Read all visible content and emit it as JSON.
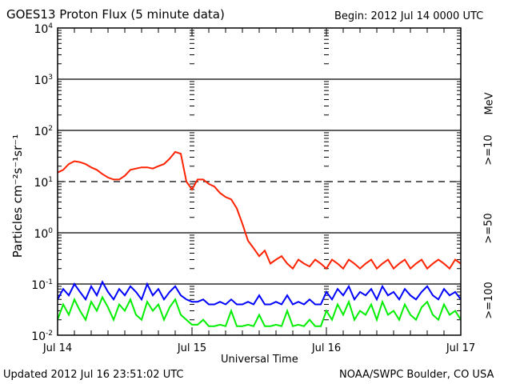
{
  "chart_data": {
    "type": "line",
    "title": "GOES13 Proton Flux (5 minute data)",
    "begin_label": "Begin: 2012 Jul 14 0000 UTC",
    "xlabel": "Universal Time",
    "ylabel": "Particles cm⁻²s⁻¹sr⁻¹",
    "yscale": "log",
    "ylim": [
      0.01,
      10000
    ],
    "xlim_hours": [
      0,
      72
    ],
    "x_tick_labels": [
      {
        "hour": 0,
        "label": "Jul 14"
      },
      {
        "hour": 24,
        "label": "Jul 15"
      },
      {
        "hour": 48,
        "label": "Jul 16"
      },
      {
        "hour": 72,
        "label": "Jul 17"
      }
    ],
    "y_tick_labels": [
      {
        "exp": 4,
        "base": "10",
        "sup": "4"
      },
      {
        "exp": 3,
        "base": "10",
        "sup": "3"
      },
      {
        "exp": 2,
        "base": "10",
        "sup": "2"
      },
      {
        "exp": 1,
        "base": "10",
        "sup": "1"
      },
      {
        "exp": 0,
        "base": "10",
        "sup": "0"
      },
      {
        "exp": -1,
        "base": "10",
        "sup": "-1"
      },
      {
        "exp": -2,
        "base": "10",
        "sup": "-2"
      }
    ],
    "unit_label": "MeV",
    "x_hours_step": 1,
    "series": [
      {
        "name": ">=10",
        "color": "#ff2200",
        "values": [
          15,
          17,
          22,
          25,
          24,
          22,
          19,
          17,
          14,
          12,
          11,
          11,
          13,
          17,
          18,
          19,
          19,
          18,
          20,
          22,
          28,
          38,
          35,
          10,
          7,
          11,
          11,
          9,
          8,
          6,
          5,
          4.5,
          3,
          1.5,
          0.7,
          0.5,
          0.35,
          0.45,
          0.25,
          0.3,
          0.35,
          0.25,
          0.2,
          0.3,
          0.25,
          0.22,
          0.3,
          0.25,
          0.2,
          0.3,
          0.25,
          0.2,
          0.3,
          0.25,
          0.2,
          0.25,
          0.3,
          0.2,
          0.25,
          0.3,
          0.2,
          0.25,
          0.3,
          0.2,
          0.25,
          0.3,
          0.2,
          0.25,
          0.3,
          0.25,
          0.2,
          0.3,
          0.25
        ]
      },
      {
        "name": ">=50",
        "color": "#0000ff",
        "values": [
          0.05,
          0.08,
          0.06,
          0.1,
          0.07,
          0.05,
          0.09,
          0.06,
          0.11,
          0.07,
          0.05,
          0.08,
          0.06,
          0.09,
          0.07,
          0.05,
          0.1,
          0.06,
          0.08,
          0.05,
          0.07,
          0.09,
          0.06,
          0.05,
          0.045,
          0.045,
          0.05,
          0.04,
          0.04,
          0.045,
          0.04,
          0.05,
          0.04,
          0.04,
          0.045,
          0.04,
          0.06,
          0.04,
          0.04,
          0.045,
          0.04,
          0.06,
          0.04,
          0.045,
          0.04,
          0.05,
          0.04,
          0.04,
          0.07,
          0.05,
          0.08,
          0.06,
          0.09,
          0.05,
          0.07,
          0.06,
          0.08,
          0.05,
          0.09,
          0.06,
          0.07,
          0.05,
          0.08,
          0.06,
          0.05,
          0.07,
          0.09,
          0.06,
          0.05,
          0.08,
          0.06,
          0.07,
          0.05
        ]
      },
      {
        "name": ">=100",
        "color": "#00ee00",
        "values": [
          0.02,
          0.04,
          0.025,
          0.05,
          0.03,
          0.02,
          0.045,
          0.03,
          0.055,
          0.035,
          0.02,
          0.04,
          0.03,
          0.05,
          0.025,
          0.02,
          0.045,
          0.03,
          0.04,
          0.02,
          0.035,
          0.05,
          0.025,
          0.02,
          0.016,
          0.016,
          0.02,
          0.015,
          0.015,
          0.016,
          0.015,
          0.03,
          0.015,
          0.015,
          0.016,
          0.015,
          0.025,
          0.015,
          0.015,
          0.016,
          0.015,
          0.03,
          0.015,
          0.016,
          0.015,
          0.02,
          0.015,
          0.015,
          0.03,
          0.02,
          0.04,
          0.025,
          0.045,
          0.02,
          0.03,
          0.025,
          0.04,
          0.02,
          0.045,
          0.025,
          0.03,
          0.02,
          0.04,
          0.025,
          0.02,
          0.035,
          0.045,
          0.025,
          0.02,
          0.04,
          0.025,
          0.03,
          0.02
        ]
      }
    ]
  },
  "footer": {
    "updated": "Updated 2012 Jul 16 23:51:02 UTC",
    "source": "NOAA/SWPC Boulder, CO USA"
  }
}
